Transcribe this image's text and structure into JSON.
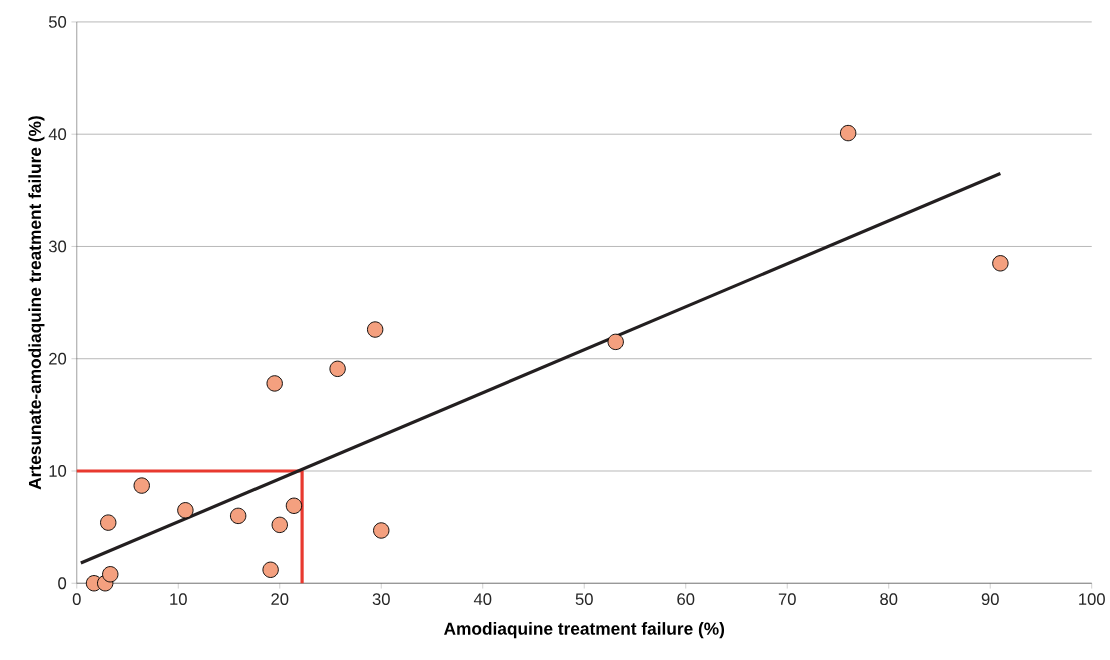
{
  "chart_data": {
    "type": "scatter",
    "xlabel": "Amodiaquine treatment failure (%)",
    "ylabel": "Artesunate-amodiaquine treatment failure (%)",
    "xlim": [
      0,
      100
    ],
    "xticks": [
      0,
      10,
      20,
      30,
      40,
      50,
      60,
      70,
      80,
      90,
      100
    ],
    "ylim": [
      0,
      50
    ],
    "yticks": [
      0,
      10,
      20,
      30,
      40,
      50
    ],
    "grid": "y",
    "marker": "circle",
    "series": [
      {
        "type": "line",
        "color": "#e8392f",
        "marker": "none",
        "line_style": "solid",
        "x": [
          0,
          22.2,
          22.2
        ],
        "values": [
          10,
          10,
          0
        ]
      },
      {
        "type": "line",
        "color": "#231f20",
        "marker": "none",
        "line_style": "solid",
        "x": [
          0.4,
          91
        ],
        "values": [
          1.8,
          36.5
        ]
      },
      {
        "color": "#f4a07f",
        "x": [
          1.7,
          2.8,
          3.3,
          3.1,
          6.4,
          10.7,
          15.9,
          19.1,
          20.0,
          21.4,
          30.0,
          19.5,
          25.7,
          29.4,
          53.1,
          76.0,
          91.0
        ],
        "values": [
          0,
          0,
          0.8,
          5.4,
          8.7,
          6.5,
          6.0,
          1.2,
          5.2,
          6.9,
          4.7,
          17.8,
          19.1,
          22.6,
          21.5,
          40.1,
          28.5
        ]
      }
    ]
  }
}
